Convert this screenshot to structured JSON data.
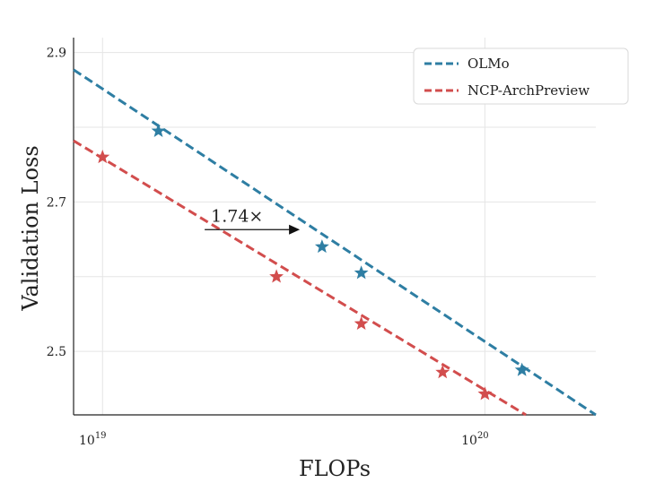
{
  "chart_data": {
    "type": "line",
    "title": "",
    "xlabel": "FLOPs",
    "ylabel": "Validation Loss",
    "x_scale": "log",
    "xlim": [
      8.4e+18,
      1.95e+20
    ],
    "ylim": [
      2.415,
      2.92
    ],
    "x_ticks": [
      {
        "value": 1e+19,
        "base": "10",
        "exp": "19"
      },
      {
        "value": 1e+20,
        "base": "10",
        "exp": "20"
      }
    ],
    "y_ticks": [
      {
        "value": 2.5,
        "label": "2.5"
      },
      {
        "value": 2.7,
        "label": "2.7"
      },
      {
        "value": 2.9,
        "label": "2.9"
      }
    ],
    "y_minor_grid": [
      2.6,
      2.8
    ],
    "grid": true,
    "legend_position": "top-right",
    "series": [
      {
        "name": "OLMo",
        "color": "#2e7ea3",
        "style": "dashed",
        "marker": "star",
        "fit_line": [
          [
            8.4e+18,
            2.877
          ],
          [
            1.95e+20,
            2.415
          ]
        ],
        "points": [
          [
            1.4e+19,
            2.795
          ],
          [
            3.75e+19,
            2.64
          ],
          [
            4.75e+19,
            2.605
          ],
          [
            1.25e+20,
            2.475
          ]
        ]
      },
      {
        "name": "NCP-ArchPreview",
        "color": "#d24d4d",
        "style": "dashed",
        "marker": "star",
        "fit_line": [
          [
            8.4e+18,
            2.782
          ],
          [
            1.28e+20,
            2.415
          ]
        ],
        "points": [
          [
            1e+19,
            2.76
          ],
          [
            2.85e+19,
            2.6
          ],
          [
            4.75e+19,
            2.537
          ],
          [
            7.75e+19,
            2.472
          ],
          [
            1e+20,
            2.443
          ]
        ]
      }
    ],
    "annotation": {
      "text": "1.74×",
      "from": [
        1.85e+19,
        2.663
      ],
      "to": [
        3.28e+19,
        2.663
      ]
    }
  }
}
